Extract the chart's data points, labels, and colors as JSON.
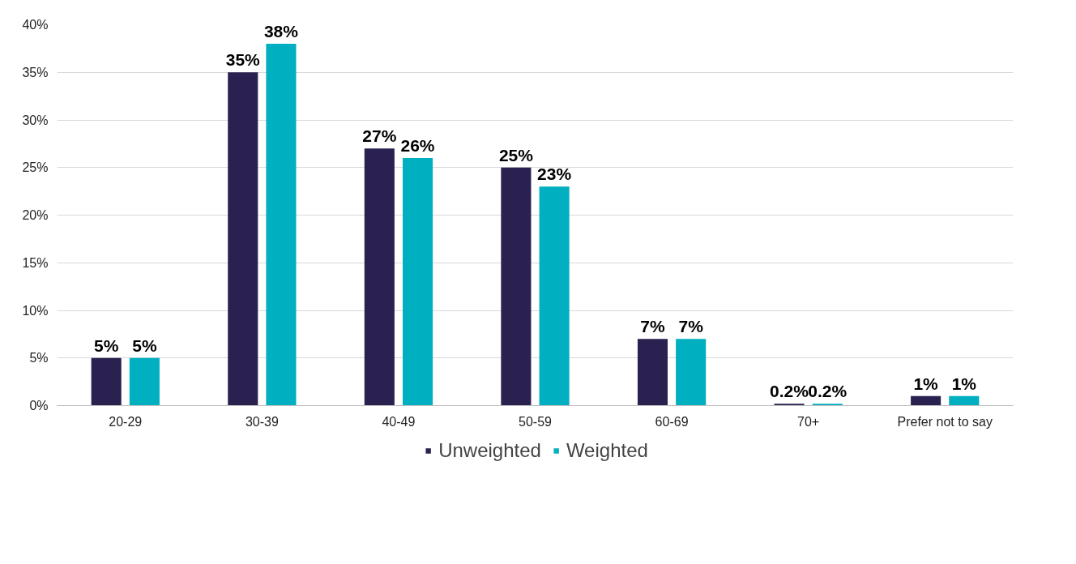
{
  "chart_data": {
    "type": "bar",
    "categories": [
      "20-29",
      "30-39",
      "40-49",
      "50-59",
      "60-69",
      "70+",
      "Prefer not to say"
    ],
    "series": [
      {
        "name": "Unweighted",
        "color": "#2a2150",
        "values": [
          5,
          35,
          27,
          25,
          7,
          0.2,
          1
        ],
        "value_labels": [
          "5%",
          "35%",
          "27%",
          "25%",
          "7%",
          "0.2%",
          "1%"
        ]
      },
      {
        "name": "Weighted",
        "color": "#00afc0",
        "values": [
          5,
          38,
          26,
          23,
          7,
          0.2,
          1
        ],
        "value_labels": [
          "5%",
          "38%",
          "26%",
          "23%",
          "7%",
          "0.2%",
          "1%"
        ]
      }
    ],
    "ylim": [
      0,
      40
    ],
    "yticks": [
      {
        "value": 0,
        "label": "0%"
      },
      {
        "value": 5,
        "label": "5%"
      },
      {
        "value": 10,
        "label": "10%"
      },
      {
        "value": 15,
        "label": "15%"
      },
      {
        "value": 20,
        "label": "20%"
      },
      {
        "value": 25,
        "label": "25%"
      },
      {
        "value": 30,
        "label": "30%"
      },
      {
        "value": 35,
        "label": "35%"
      },
      {
        "value": 40,
        "label": "40%"
      }
    ],
    "grid": "y",
    "legend": "bottom"
  }
}
